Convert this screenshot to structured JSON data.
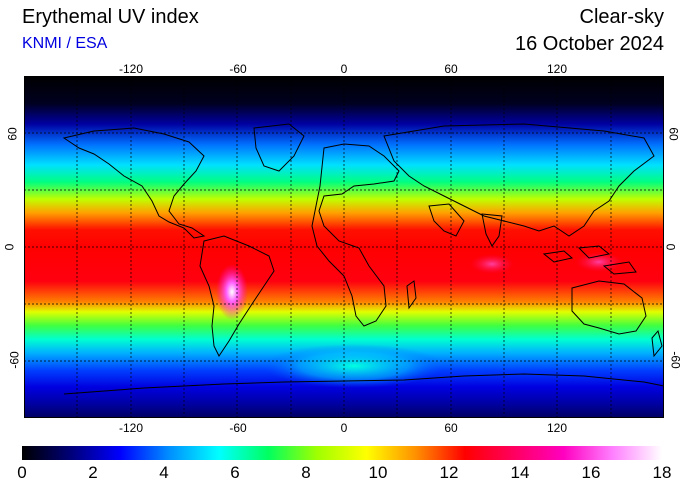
{
  "header": {
    "title": "Erythemal UV index",
    "credit": "KNMI / ESA",
    "mode": "Clear-sky",
    "date": "16 October 2024"
  },
  "axes": {
    "longitude_ticks": [
      "-120",
      "-60",
      "0",
      "60",
      "120"
    ],
    "latitude_ticks": [
      "60",
      "0",
      "-60"
    ]
  },
  "colorbar": {
    "ticks": [
      "0",
      "2",
      "4",
      "6",
      "8",
      "10",
      "12",
      "14",
      "16",
      "18"
    ],
    "stops": [
      "#000000",
      "#00007a",
      "#0000ff",
      "#0090ff",
      "#00ffff",
      "#00ff60",
      "#a0ff00",
      "#ffff00",
      "#ff9000",
      "#ff0000",
      "#ff0060",
      "#ff00c0",
      "#ff80ff",
      "#ffffff"
    ]
  },
  "legend": {
    "grid": "dashed lat/lon graticule every 30 degrees",
    "coastlines": "black outlines"
  }
}
